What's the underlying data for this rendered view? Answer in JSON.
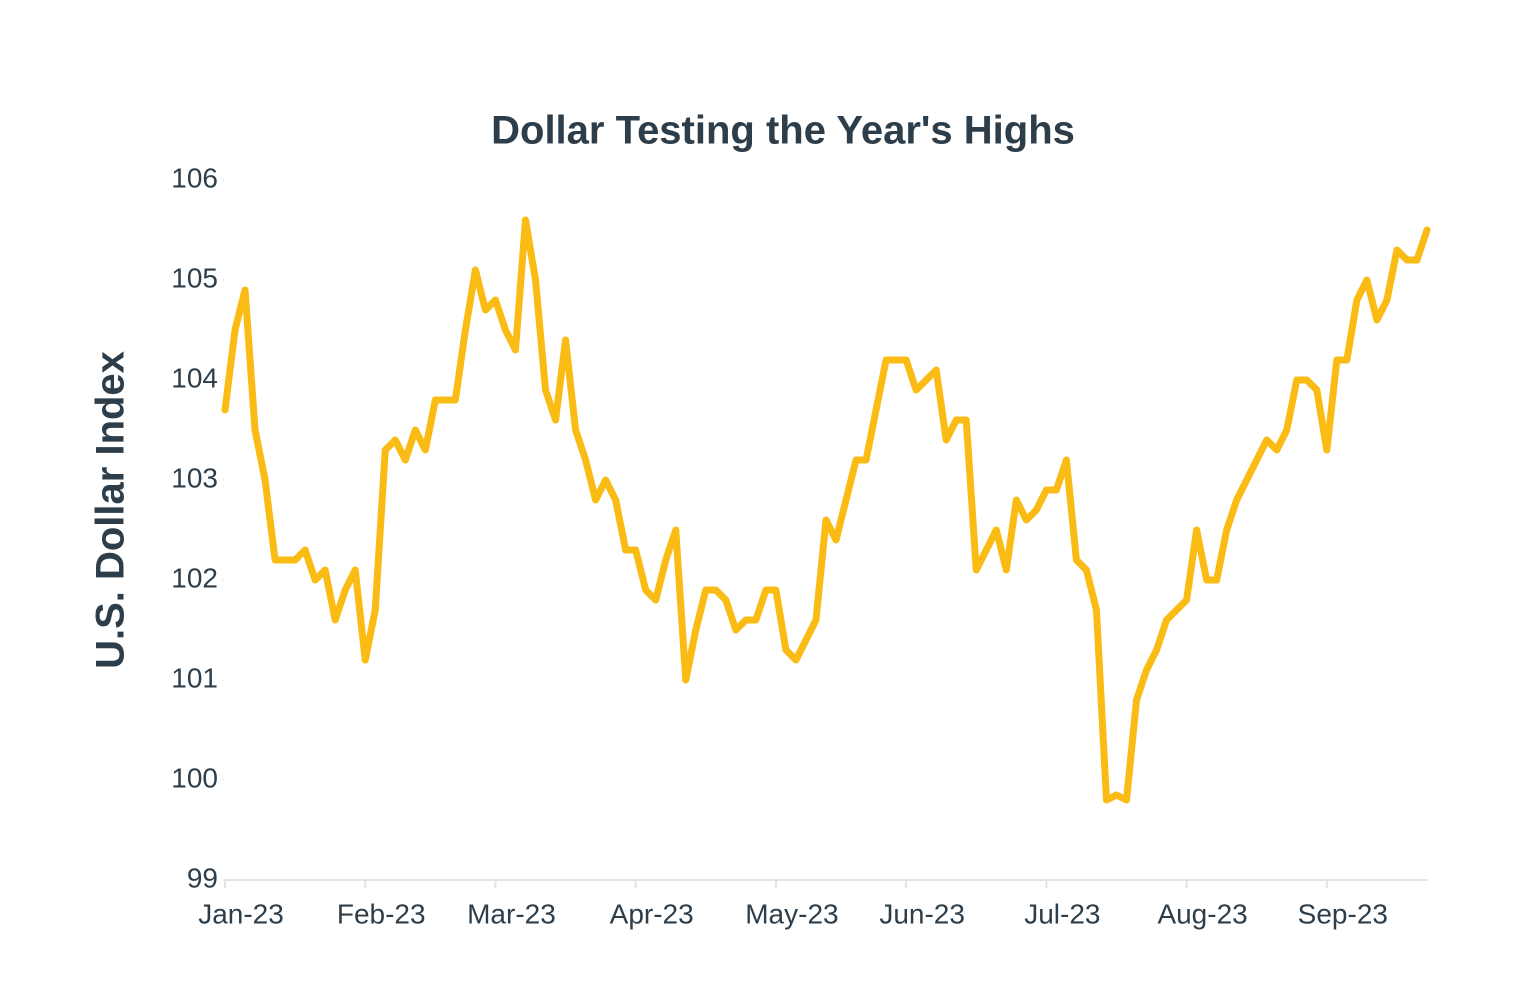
{
  "chart_data": {
    "type": "line",
    "title": "Dollar Testing the Year's Highs",
    "y_label": "U.S. Dollar Index",
    "categories": [
      "Jan-23",
      null,
      null,
      null,
      null,
      null,
      null,
      null,
      null,
      null,
      null,
      null,
      null,
      null,
      "Feb-23",
      null,
      null,
      null,
      null,
      null,
      null,
      null,
      null,
      null,
      null,
      null,
      null,
      "Mar-23",
      null,
      null,
      null,
      null,
      null,
      null,
      null,
      null,
      null,
      null,
      null,
      null,
      null,
      "Apr-23",
      null,
      null,
      null,
      null,
      null,
      null,
      null,
      null,
      null,
      null,
      null,
      null,
      null,
      "May-23",
      null,
      null,
      null,
      null,
      null,
      null,
      null,
      null,
      null,
      null,
      null,
      null,
      "Jun-23",
      null,
      null,
      null,
      null,
      null,
      null,
      null,
      null,
      null,
      null,
      null,
      null,
      null,
      "Jul-23",
      null,
      null,
      null,
      null,
      null,
      null,
      null,
      null,
      null,
      null,
      null,
      null,
      null,
      "Aug-23",
      null,
      null,
      null,
      null,
      null,
      null,
      null,
      null,
      null,
      null,
      null,
      null,
      null,
      "Sep-23",
      null,
      null,
      null,
      null,
      null,
      null,
      null,
      null,
      null,
      null
    ],
    "values": [
      103.7,
      104.5,
      104.9,
      103.5,
      103.0,
      102.2,
      102.2,
      102.2,
      102.3,
      102.0,
      102.1,
      101.6,
      101.9,
      102.1,
      101.2,
      101.7,
      103.3,
      103.4,
      103.2,
      103.5,
      103.3,
      103.8,
      103.8,
      103.8,
      104.5,
      105.1,
      104.7,
      104.8,
      104.5,
      104.3,
      105.6,
      105.0,
      103.9,
      103.6,
      104.4,
      103.5,
      103.2,
      102.8,
      103.0,
      102.8,
      102.3,
      102.3,
      101.9,
      101.8,
      102.2,
      102.5,
      101.0,
      101.5,
      101.9,
      101.9,
      101.8,
      101.5,
      101.6,
      101.6,
      101.9,
      101.9,
      101.3,
      101.2,
      101.4,
      101.6,
      102.6,
      102.4,
      102.8,
      103.2,
      103.2,
      103.7,
      104.2,
      104.2,
      104.2,
      103.9,
      104.0,
      104.1,
      103.4,
      103.6,
      103.6,
      102.1,
      102.3,
      102.5,
      102.1,
      102.8,
      102.6,
      102.7,
      102.9,
      102.9,
      103.2,
      102.2,
      102.1,
      101.7,
      99.8,
      99.85,
      99.8,
      100.8,
      101.1,
      101.3,
      101.6,
      101.7,
      101.8,
      102.5,
      102.0,
      102.0,
      102.5,
      102.8,
      103.0,
      103.2,
      103.4,
      103.3,
      103.5,
      104.0,
      104.0,
      103.9,
      103.3,
      104.2,
      104.2,
      104.8,
      105.0,
      104.6,
      104.8,
      105.3,
      105.2,
      105.2,
      105.5
    ],
    "color": "#f9bb14",
    "ylim": [
      99,
      106
    ],
    "yticks": [
      99,
      100,
      101,
      102,
      103,
      104,
      105,
      106
    ],
    "grid": false
  }
}
